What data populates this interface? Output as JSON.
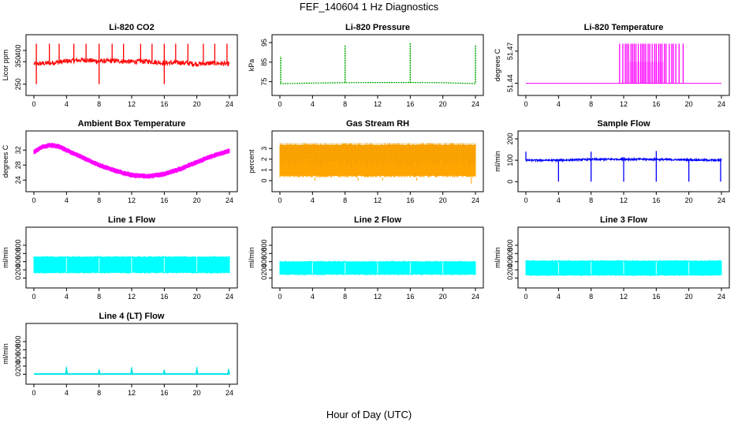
{
  "figure": {
    "title": "FEF_140604  1 Hz Diagnostics",
    "x_axis_title": "Hour of Day (UTC)"
  },
  "chart_data": [
    {
      "type": "line",
      "title": "Li-820 CO2",
      "ylabel": "Licor ppm",
      "color": "#ff0000",
      "xlim": [
        0,
        24
      ],
      "x_ticks": [
        0,
        4,
        8,
        12,
        16,
        20,
        24
      ],
      "ylim": [
        235,
        435
      ],
      "y_ticks": [
        250,
        350,
        400
      ],
      "series": [
        {
          "x": [
            0,
            2,
            4,
            6,
            8,
            10,
            12,
            14,
            16,
            18,
            20,
            22,
            24
          ],
          "values": [
            340,
            344,
            352,
            358,
            352,
            354,
            350,
            352,
            344,
            346,
            340,
            344,
            340
          ]
        }
      ],
      "annotations": "periodic spikes to ~430 ppm roughly every 2 h; dips to ~250 ppm near 0.3, 8 and 16 h",
      "grid": false,
      "legend": "none"
    },
    {
      "type": "line",
      "title": "Li-820 Pressure",
      "ylabel": "kPa",
      "color": "#00aa00",
      "xlim": [
        0,
        24
      ],
      "x_ticks": [
        0,
        4,
        8,
        12,
        16,
        20,
        24
      ],
      "ylim": [
        72,
        95
      ],
      "y_ticks": [
        75,
        85,
        95
      ],
      "series": [
        {
          "x": [
            0,
            4,
            8,
            12,
            16,
            20,
            24
          ],
          "values": [
            74,
            74.3,
            74.5,
            74.6,
            74.6,
            74.5,
            74
          ]
        }
      ],
      "annotations": "spikes to ~93-95 kPa at 0.1, 8, 16 and 24 h",
      "grid": false,
      "legend": "none"
    },
    {
      "type": "line",
      "title": "Li-820 Temperature",
      "ylabel": "degrees C",
      "color": "#ff00ff",
      "xlim": [
        0,
        24
      ],
      "x_ticks": [
        0,
        4,
        8,
        12,
        16,
        20,
        24
      ],
      "ylim": [
        51.436,
        51.478
      ],
      "y_ticks": [
        51.44,
        51.47
      ],
      "series": [
        {
          "x": [
            0,
            11.4,
            11.4,
            19.4,
            19.4,
            24
          ],
          "values": [
            51.44,
            51.44,
            51.45,
            51.45,
            51.44,
            51.44
          ]
        }
      ],
      "annotations": "quantized toggling between 51.44 and 51.47 from ~11.5 to ~19.5 h",
      "grid": false,
      "legend": "none"
    },
    {
      "type": "area",
      "title": "Ambient Box Temperature",
      "ylabel": "degrees C",
      "color": "#ff00ff",
      "xlim": [
        0,
        24
      ],
      "x_ticks": [
        0,
        4,
        8,
        12,
        16,
        20,
        24
      ],
      "ylim": [
        23,
        35
      ],
      "y_ticks": [
        24,
        28,
        32
      ],
      "series": [
        {
          "x": [
            0,
            1,
            2,
            3,
            4,
            6,
            8,
            10,
            12,
            14,
            16,
            18,
            20,
            22,
            24
          ],
          "values": [
            31.5,
            32.8,
            33.3,
            33,
            32,
            30,
            28,
            26.5,
            25.3,
            25,
            25.6,
            27,
            28.8,
            30.5,
            31.8
          ]
        }
      ],
      "band_halfwidth": 0.5,
      "grid": false,
      "legend": "none"
    },
    {
      "type": "area",
      "title": "Gas Stream RH",
      "ylabel": "percent",
      "color": "#ffa500",
      "xlim": [
        0,
        24
      ],
      "x_ticks": [
        0,
        4,
        8,
        12,
        16,
        20,
        24
      ],
      "ylim": [
        -0.3,
        3.9
      ],
      "y_ticks": [
        0,
        1,
        2,
        3
      ],
      "series": [
        {
          "x": [
            0,
            24
          ],
          "upper": [
            3.5,
            3.5
          ],
          "lower": [
            0.3,
            0.3
          ]
        }
      ],
      "grid": false,
      "legend": "none"
    },
    {
      "type": "line",
      "title": "Sample Flow",
      "ylabel": "ml/min",
      "color": "#0000ff",
      "xlim": [
        0,
        24
      ],
      "x_ticks": [
        0,
        4,
        8,
        12,
        16,
        20,
        24
      ],
      "ylim": [
        -10,
        200
      ],
      "y_ticks": [
        0,
        100,
        200
      ],
      "series": [
        {
          "x": [
            0,
            4,
            8,
            12,
            16,
            20,
            24
          ],
          "values": [
            100,
            100,
            104,
            105,
            104,
            102,
            100
          ]
        }
      ],
      "annotations": "drops to ~0 at 4, 8, 12, 16, 20, 24 h; spikes to ~140 at 0, 8, 16 h",
      "grid": false,
      "legend": "none"
    },
    {
      "type": "area",
      "title": "Line 1 Flow",
      "ylabel": "ml/min",
      "color": "#00ffff",
      "xlim": [
        0,
        24
      ],
      "x_ticks": [
        0,
        4,
        8,
        12,
        16,
        20,
        24
      ],
      "ylim": [
        -50,
        1050
      ],
      "y_ticks": [
        0,
        200,
        400,
        600,
        800
      ],
      "series": [
        {
          "x": [
            0,
            24
          ],
          "upper": [
            540,
            540
          ],
          "lower": [
            110,
            110
          ]
        }
      ],
      "grid": false,
      "legend": "none"
    },
    {
      "type": "area",
      "title": "Line 2 Flow",
      "ylabel": "ml/min",
      "color": "#00ffff",
      "xlim": [
        0,
        24
      ],
      "x_ticks": [
        0,
        4,
        8,
        12,
        16,
        20,
        24
      ],
      "ylim": [
        -50,
        1050
      ],
      "y_ticks": [
        0,
        200,
        400,
        600,
        800
      ],
      "series": [
        {
          "x": [
            0,
            24
          ],
          "upper": [
            420,
            420
          ],
          "lower": [
            70,
            70
          ]
        }
      ],
      "grid": false,
      "legend": "none"
    },
    {
      "type": "area",
      "title": "Line 3 Flow",
      "ylabel": "ml/min",
      "color": "#00ffff",
      "xlim": [
        0,
        24
      ],
      "x_ticks": [
        0,
        4,
        8,
        12,
        16,
        20,
        24
      ],
      "ylim": [
        -50,
        1050
      ],
      "y_ticks": [
        0,
        200,
        400,
        600,
        800
      ],
      "series": [
        {
          "x": [
            0,
            24
          ],
          "upper": [
            440,
            440
          ],
          "lower": [
            50,
            50
          ]
        }
      ],
      "grid": false,
      "legend": "none"
    },
    {
      "type": "line",
      "title": "Line 4 (LT) Flow",
      "ylabel": "ml/min",
      "color": "#00e5e5",
      "xlim": [
        0,
        24
      ],
      "x_ticks": [
        0,
        4,
        8,
        12,
        16,
        20,
        24
      ],
      "ylim": [
        -50,
        1050
      ],
      "y_ticks": [
        0,
        200,
        400,
        600,
        800
      ],
      "series": [
        {
          "x": [
            0,
            24
          ],
          "values": [
            5,
            5
          ]
        }
      ],
      "annotations": "spikes to ~150-200 ml/min near 4, 8, 12, 16, 20, 24 h",
      "grid": false,
      "legend": "none"
    }
  ]
}
